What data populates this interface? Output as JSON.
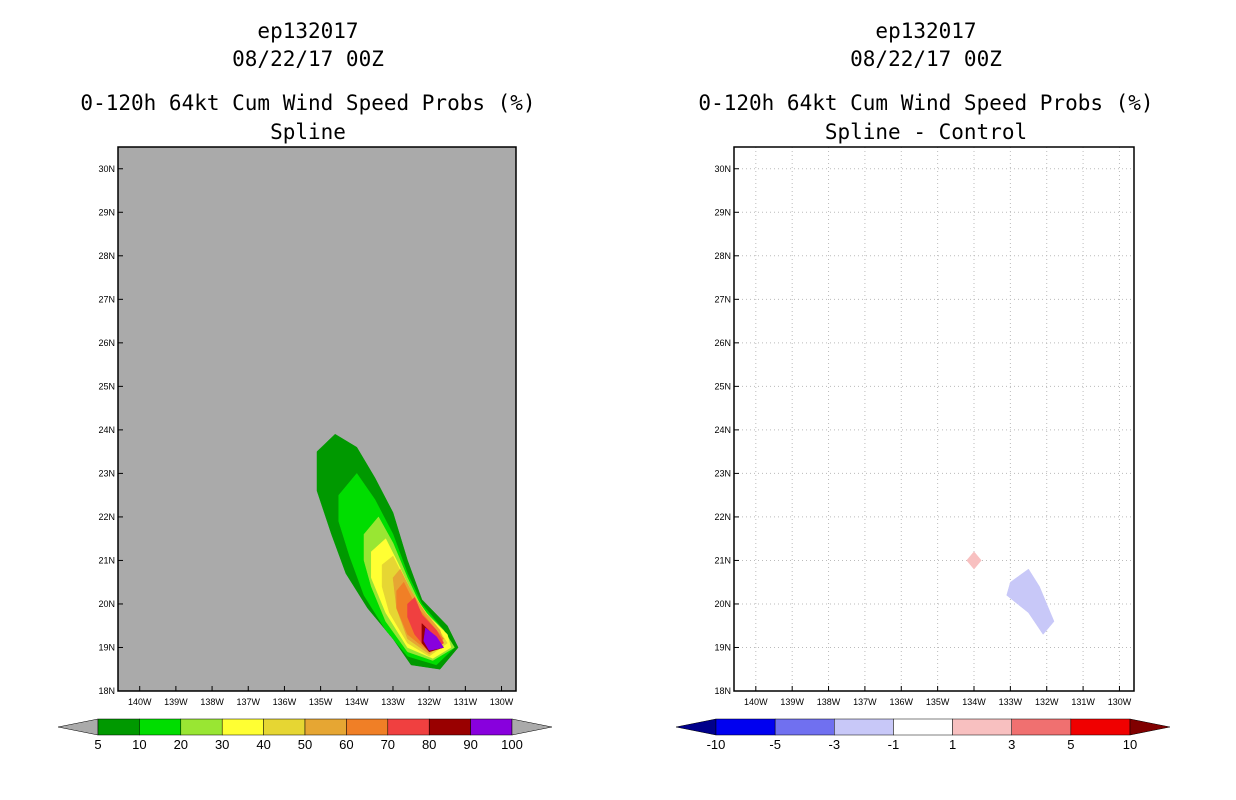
{
  "chart_data": [
    {
      "type": "heatmap",
      "title": [
        "ep132017",
        "08/22/17 00Z",
        "0-120h 64kt Cum Wind Speed Probs (%)",
        "Spline"
      ],
      "x_ticks": [
        "140W",
        "139W",
        "138W",
        "137W",
        "136W",
        "135W",
        "134W",
        "133W",
        "132W",
        "131W",
        "130W"
      ],
      "y_ticks": [
        "18N",
        "19N",
        "20N",
        "21N",
        "22N",
        "23N",
        "24N",
        "25N",
        "26N",
        "27N",
        "28N",
        "29N",
        "30N"
      ],
      "xlim": [
        -140.6,
        -129.6
      ],
      "ylim": [
        18,
        30.5
      ],
      "background": "#aaaaaa",
      "colorbar": {
        "labels": [
          "5",
          "10",
          "20",
          "30",
          "40",
          "50",
          "60",
          "70",
          "80",
          "90",
          "100"
        ],
        "colors": [
          "#009900",
          "#00dd00",
          "#99e633",
          "#ffff33",
          "#e6d633",
          "#e6a633",
          "#f07f26",
          "#f04040",
          "#990000",
          "#8800dd"
        ],
        "under_color": "#aaaaaa",
        "over_color": "#aaaaaa"
      },
      "contours": [
        {
          "level": 5,
          "color": "#009900",
          "points": [
            [
              -135.1,
              23.5
            ],
            [
              -134.6,
              23.9
            ],
            [
              -134.0,
              23.6
            ],
            [
              -133.5,
              22.9
            ],
            [
              -133.0,
              22.1
            ],
            [
              -132.6,
              21.0
            ],
            [
              -132.2,
              20.1
            ],
            [
              -131.5,
              19.5
            ],
            [
              -131.2,
              19.0
            ],
            [
              -131.7,
              18.5
            ],
            [
              -132.5,
              18.6
            ],
            [
              -133.0,
              19.2
            ],
            [
              -133.7,
              19.9
            ],
            [
              -134.3,
              20.7
            ],
            [
              -134.7,
              21.6
            ],
            [
              -135.1,
              22.6
            ]
          ]
        },
        {
          "level": 10,
          "color": "#00dd00",
          "points": [
            [
              -134.5,
              22.5
            ],
            [
              -134.0,
              23.0
            ],
            [
              -133.5,
              22.4
            ],
            [
              -133.0,
              21.6
            ],
            [
              -132.6,
              20.7
            ],
            [
              -132.2,
              20.0
            ],
            [
              -131.6,
              19.4
            ],
            [
              -131.3,
              19.0
            ],
            [
              -131.8,
              18.6
            ],
            [
              -132.6,
              18.8
            ],
            [
              -133.2,
              19.4
            ],
            [
              -133.8,
              20.2
            ],
            [
              -134.2,
              21.1
            ],
            [
              -134.5,
              21.9
            ]
          ]
        },
        {
          "level": 20,
          "color": "#99e633",
          "points": [
            [
              -133.8,
              21.6
            ],
            [
              -133.4,
              22.0
            ],
            [
              -133.0,
              21.4
            ],
            [
              -132.6,
              20.6
            ],
            [
              -132.2,
              19.9
            ],
            [
              -131.6,
              19.4
            ],
            [
              -131.3,
              19.0
            ],
            [
              -131.9,
              18.7
            ],
            [
              -132.6,
              18.9
            ],
            [
              -133.2,
              19.6
            ],
            [
              -133.6,
              20.4
            ],
            [
              -133.8,
              21.0
            ]
          ]
        },
        {
          "level": 30,
          "color": "#ffff33",
          "points": [
            [
              -133.6,
              21.2
            ],
            [
              -133.2,
              21.5
            ],
            [
              -132.9,
              21.0
            ],
            [
              -132.5,
              20.3
            ],
            [
              -132.0,
              19.7
            ],
            [
              -131.5,
              19.3
            ],
            [
              -131.4,
              19.0
            ],
            [
              -131.9,
              18.75
            ],
            [
              -132.6,
              19.0
            ],
            [
              -133.2,
              19.8
            ],
            [
              -133.6,
              20.6
            ]
          ]
        },
        {
          "level": 40,
          "color": "#e6d633",
          "points": [
            [
              -133.3,
              20.9
            ],
            [
              -133.0,
              21.1
            ],
            [
              -132.7,
              20.6
            ],
            [
              -132.3,
              20.0
            ],
            [
              -131.8,
              19.5
            ],
            [
              -131.5,
              19.1
            ],
            [
              -132.0,
              18.8
            ],
            [
              -132.6,
              19.1
            ],
            [
              -133.1,
              19.8
            ],
            [
              -133.3,
              20.4
            ]
          ]
        },
        {
          "level": 50,
          "color": "#e6a633",
          "points": [
            [
              -133.0,
              20.6
            ],
            [
              -132.8,
              20.8
            ],
            [
              -132.5,
              20.3
            ],
            [
              -132.1,
              19.8
            ],
            [
              -131.7,
              19.4
            ],
            [
              -131.6,
              19.1
            ],
            [
              -132.0,
              18.85
            ],
            [
              -132.6,
              19.2
            ],
            [
              -132.9,
              19.9
            ]
          ]
        },
        {
          "level": 60,
          "color": "#f07f26",
          "points": [
            [
              -132.9,
              20.3
            ],
            [
              -132.7,
              20.5
            ],
            [
              -132.4,
              20.0
            ],
            [
              -132.0,
              19.6
            ],
            [
              -131.6,
              19.2
            ],
            [
              -132.0,
              18.9
            ],
            [
              -132.6,
              19.3
            ],
            [
              -132.9,
              19.9
            ]
          ]
        },
        {
          "level": 70,
          "color": "#f04040",
          "points": [
            [
              -132.6,
              20.0
            ],
            [
              -132.4,
              20.15
            ],
            [
              -132.2,
              19.75
            ],
            [
              -131.8,
              19.4
            ],
            [
              -131.6,
              19.1
            ],
            [
              -132.0,
              18.9
            ],
            [
              -132.4,
              19.3
            ],
            [
              -132.6,
              19.7
            ]
          ]
        },
        {
          "level": 80,
          "color": "#990000",
          "points": [
            [
              -132.2,
              19.55
            ],
            [
              -131.9,
              19.3
            ],
            [
              -131.6,
              19.0
            ],
            [
              -132.0,
              18.9
            ],
            [
              -132.2,
              19.1
            ]
          ]
        },
        {
          "level": 90,
          "color": "#8800dd",
          "points": [
            [
              -132.1,
              19.45
            ],
            [
              -131.8,
              19.25
            ],
            [
              -131.6,
              19.0
            ],
            [
              -132.0,
              18.93
            ],
            [
              -132.15,
              19.15
            ]
          ]
        }
      ]
    },
    {
      "type": "heatmap",
      "title": [
        "ep132017",
        "08/22/17 00Z",
        "0-120h 64kt Cum Wind Speed Probs (%)",
        "Spline - Control"
      ],
      "x_ticks": [
        "140W",
        "139W",
        "138W",
        "137W",
        "136W",
        "135W",
        "134W",
        "133W",
        "132W",
        "131W",
        "130W"
      ],
      "y_ticks": [
        "18N",
        "19N",
        "20N",
        "21N",
        "22N",
        "23N",
        "24N",
        "25N",
        "26N",
        "27N",
        "28N",
        "29N",
        "30N"
      ],
      "xlim": [
        -140.6,
        -129.6
      ],
      "ylim": [
        18,
        30.5
      ],
      "background": "#ffffff",
      "grid": true,
      "colorbar": {
        "labels": [
          "-10",
          "-5",
          "-3",
          "-1",
          "1",
          "3",
          "5",
          "10"
        ],
        "colors": [
          "#0000f0",
          "#7070f0",
          "#c8c8f8",
          "#ffffff",
          "#f8c0c0",
          "#f07070",
          "#f00000"
        ],
        "under_color": "#00008b",
        "over_color": "#800000"
      },
      "contours": [
        {
          "level": 1,
          "color": "#f8c0c0",
          "points": [
            [
              -134.0,
              21.2
            ],
            [
              -133.8,
              21.0
            ],
            [
              -134.0,
              20.8
            ],
            [
              -134.2,
              21.0
            ]
          ]
        },
        {
          "level": -1,
          "color": "#c8c8f8",
          "points": [
            [
              -132.5,
              20.8
            ],
            [
              -132.2,
              20.4
            ],
            [
              -131.8,
              19.6
            ],
            [
              -132.1,
              19.3
            ],
            [
              -132.5,
              19.8
            ],
            [
              -133.1,
              20.2
            ],
            [
              -133.0,
              20.5
            ]
          ]
        }
      ]
    }
  ]
}
